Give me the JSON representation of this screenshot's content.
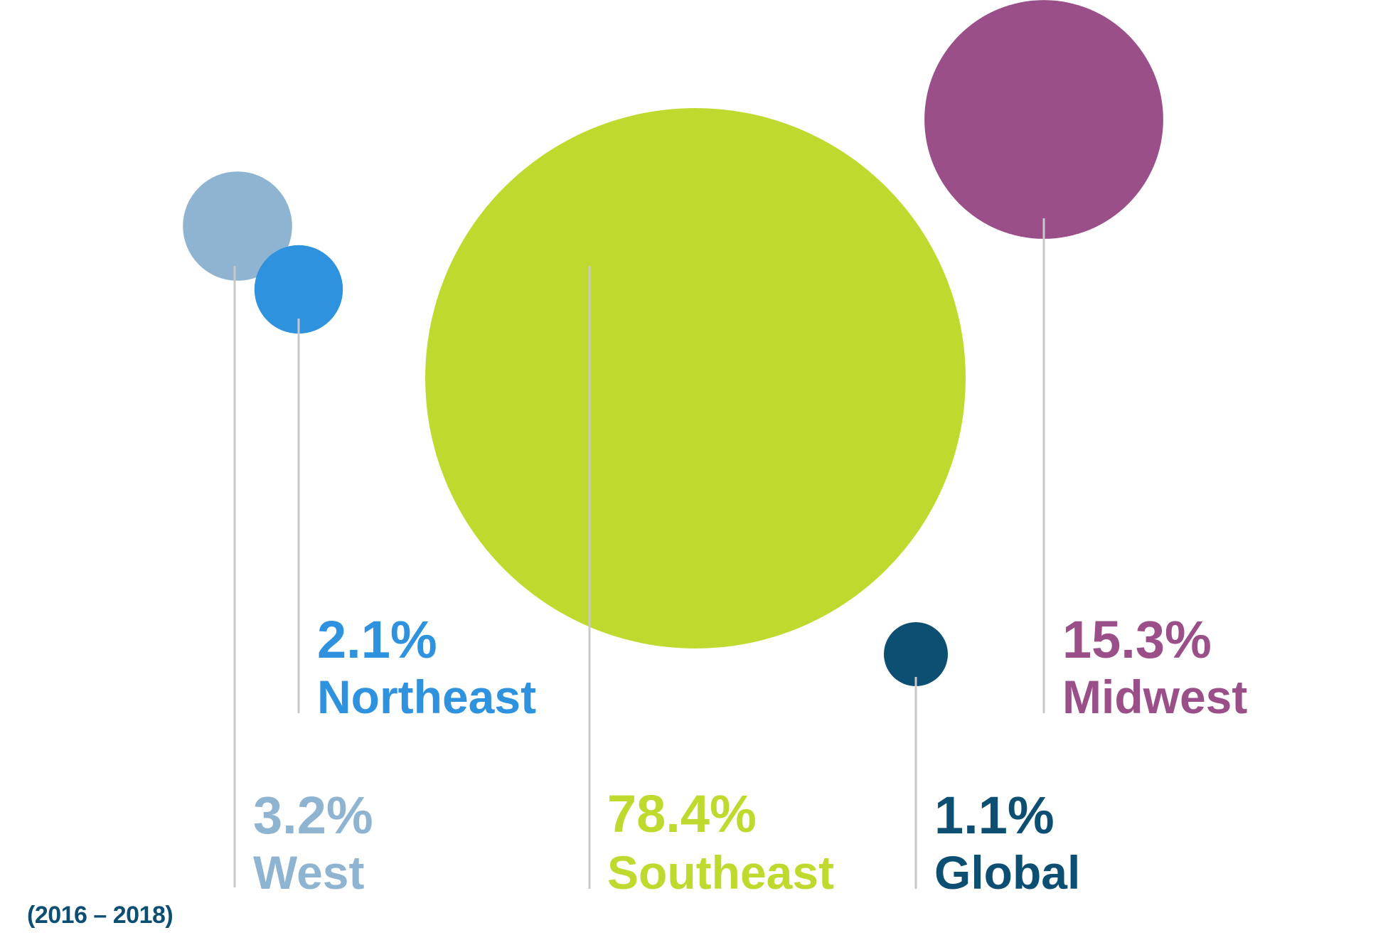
{
  "colors": {
    "west": "#8fb4d2",
    "northeast": "#2e92df",
    "southeast": "#c0d92f",
    "global": "#0d4f73",
    "midwest": "#9a4f88",
    "leader": "#c8c8c8"
  },
  "chart_data": {
    "type": "bubble",
    "unit": "%",
    "series": [
      {
        "key": "west",
        "label": "West",
        "value": 3.2,
        "value_label": "3.2%"
      },
      {
        "key": "northeast",
        "label": "Northeast",
        "value": 2.1,
        "value_label": "2.1%"
      },
      {
        "key": "southeast",
        "label": "Southeast",
        "value": 78.4,
        "value_label": "78.4%"
      },
      {
        "key": "global",
        "label": "Global",
        "value": 1.1,
        "value_label": "1.1%"
      },
      {
        "key": "midwest",
        "label": "Midwest",
        "value": 15.3,
        "value_label": "15.3%"
      }
    ]
  },
  "footnote": "(2016 – 2018)"
}
